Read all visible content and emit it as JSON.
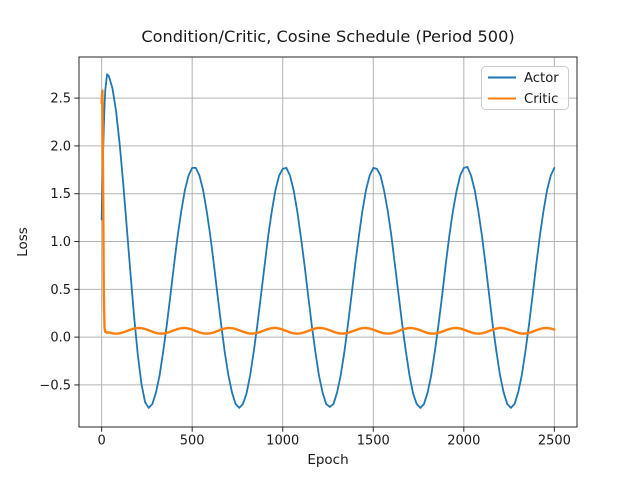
{
  "figure": {
    "background": "#ffffff",
    "text_color": "#1a1a1a",
    "grid_color": "#b3b3b3",
    "spine_color": "#262626"
  },
  "chart_data": {
    "type": "line",
    "title": "Condition/Critic, Cosine Schedule (Period 500)",
    "xlabel": "Epoch",
    "ylabel": "Loss",
    "xlim": [
      -125,
      2625
    ],
    "ylim": [
      -0.94,
      2.93
    ],
    "grid": true,
    "legend_position": "upper right",
    "x_ticks": [
      0,
      500,
      1000,
      1500,
      2000,
      2500
    ],
    "x_tick_labels": [
      "0",
      "500",
      "1000",
      "1500",
      "2000",
      "2500"
    ],
    "y_ticks": [
      -0.5,
      0.0,
      0.5,
      1.0,
      1.5,
      2.0,
      2.5
    ],
    "y_tick_labels": [
      "−0.5",
      "0.0",
      "0.5",
      "1.0",
      "1.5",
      "2.0",
      "2.5"
    ],
    "x": [
      0,
      4,
      8,
      12,
      16,
      20,
      30,
      40,
      60,
      80,
      100,
      120,
      140,
      160,
      180,
      200,
      220,
      240,
      260,
      280,
      300,
      320,
      340,
      360,
      380,
      400,
      420,
      440,
      460,
      480,
      500,
      520,
      540,
      560,
      580,
      600,
      620,
      640,
      660,
      680,
      700,
      720,
      740,
      760,
      780,
      800,
      820,
      840,
      860,
      880,
      900,
      920,
      940,
      960,
      980,
      1000,
      1020,
      1040,
      1060,
      1080,
      1100,
      1120,
      1140,
      1160,
      1180,
      1200,
      1220,
      1240,
      1260,
      1280,
      1300,
      1320,
      1340,
      1360,
      1380,
      1400,
      1420,
      1440,
      1460,
      1480,
      1500,
      1520,
      1540,
      1560,
      1580,
      1600,
      1620,
      1640,
      1660,
      1680,
      1700,
      1720,
      1740,
      1760,
      1780,
      1800,
      1820,
      1840,
      1860,
      1880,
      1900,
      1920,
      1940,
      1960,
      1980,
      2000,
      2020,
      2040,
      2060,
      2080,
      2100,
      2120,
      2140,
      2160,
      2180,
      2200,
      2220,
      2240,
      2260,
      2280,
      2300,
      2320,
      2340,
      2360,
      2380,
      2400,
      2420,
      2440,
      2460,
      2480,
      2500
    ],
    "series": [
      {
        "name": "Actor",
        "color": "#1f77b4",
        "linewidth": 1.8,
        "y": [
          1.23,
          1.61,
          1.93,
          2.2,
          2.42,
          2.58,
          2.75,
          2.73,
          2.6,
          2.36,
          2.01,
          1.59,
          1.12,
          0.65,
          0.2,
          -0.19,
          -0.49,
          -0.68,
          -0.74,
          -0.7,
          -0.58,
          -0.4,
          -0.15,
          0.13,
          0.44,
          0.76,
          1.06,
          1.32,
          1.54,
          1.69,
          1.77,
          1.77,
          1.69,
          1.54,
          1.32,
          1.06,
          0.76,
          0.44,
          0.13,
          -0.16,
          -0.4,
          -0.58,
          -0.7,
          -0.74,
          -0.7,
          -0.59,
          -0.4,
          -0.15,
          0.13,
          0.44,
          0.75,
          1.06,
          1.32,
          1.54,
          1.69,
          1.76,
          1.77,
          1.69,
          1.54,
          1.32,
          1.05,
          0.76,
          0.44,
          0.13,
          -0.15,
          -0.4,
          -0.58,
          -0.7,
          -0.73,
          -0.7,
          -0.58,
          -0.4,
          -0.16,
          0.13,
          0.44,
          0.76,
          1.05,
          1.32,
          1.54,
          1.69,
          1.77,
          1.76,
          1.69,
          1.53,
          1.32,
          1.06,
          0.75,
          0.44,
          0.13,
          -0.15,
          -0.4,
          -0.59,
          -0.7,
          -0.74,
          -0.7,
          -0.58,
          -0.4,
          -0.15,
          0.13,
          0.43,
          0.76,
          1.06,
          1.32,
          1.53,
          1.69,
          1.77,
          1.78,
          1.69,
          1.54,
          1.32,
          1.06,
          0.76,
          0.44,
          0.12,
          -0.15,
          -0.4,
          -0.58,
          -0.7,
          -0.74,
          -0.7,
          -0.58,
          -0.4,
          -0.15,
          0.13,
          0.44,
          0.76,
          1.06,
          1.32,
          1.54,
          1.69,
          1.77
        ]
      },
      {
        "name": "Critic",
        "color": "#ff7f0e",
        "linewidth": 2.4,
        "y": [
          2.45,
          2.58,
          1.6,
          0.45,
          0.1,
          0.055,
          0.046,
          0.05,
          0.04,
          0.036,
          0.04,
          0.05,
          0.064,
          0.079,
          0.09,
          0.096,
          0.094,
          0.085,
          0.072,
          0.057,
          0.044,
          0.037,
          0.037,
          0.044,
          0.057,
          0.072,
          0.085,
          0.094,
          0.096,
          0.09,
          0.079,
          0.064,
          0.05,
          0.04,
          0.036,
          0.04,
          0.05,
          0.064,
          0.079,
          0.09,
          0.096,
          0.094,
          0.085,
          0.071,
          0.057,
          0.044,
          0.037,
          0.038,
          0.044,
          0.057,
          0.072,
          0.086,
          0.094,
          0.097,
          0.09,
          0.079,
          0.064,
          0.05,
          0.04,
          0.036,
          0.04,
          0.051,
          0.064,
          0.079,
          0.091,
          0.096,
          0.094,
          0.085,
          0.072,
          0.056,
          0.044,
          0.037,
          0.037,
          0.045,
          0.057,
          0.072,
          0.085,
          0.095,
          0.096,
          0.09,
          0.078,
          0.064,
          0.05,
          0.04,
          0.037,
          0.04,
          0.05,
          0.064,
          0.08,
          0.09,
          0.096,
          0.093,
          0.085,
          0.072,
          0.057,
          0.043,
          0.037,
          0.037,
          0.044,
          0.058,
          0.072,
          0.085,
          0.094,
          0.096,
          0.091,
          0.079,
          0.064,
          0.051,
          0.04,
          0.036,
          0.04,
          0.05,
          0.065,
          0.079,
          0.09,
          0.097,
          0.094,
          0.084,
          0.072,
          0.057,
          0.044,
          0.037,
          0.037,
          0.044,
          0.057,
          0.072,
          0.085,
          0.094,
          0.096,
          0.09,
          0.079
        ]
      }
    ]
  },
  "legend": {
    "entries": [
      "Actor",
      "Critic"
    ]
  }
}
